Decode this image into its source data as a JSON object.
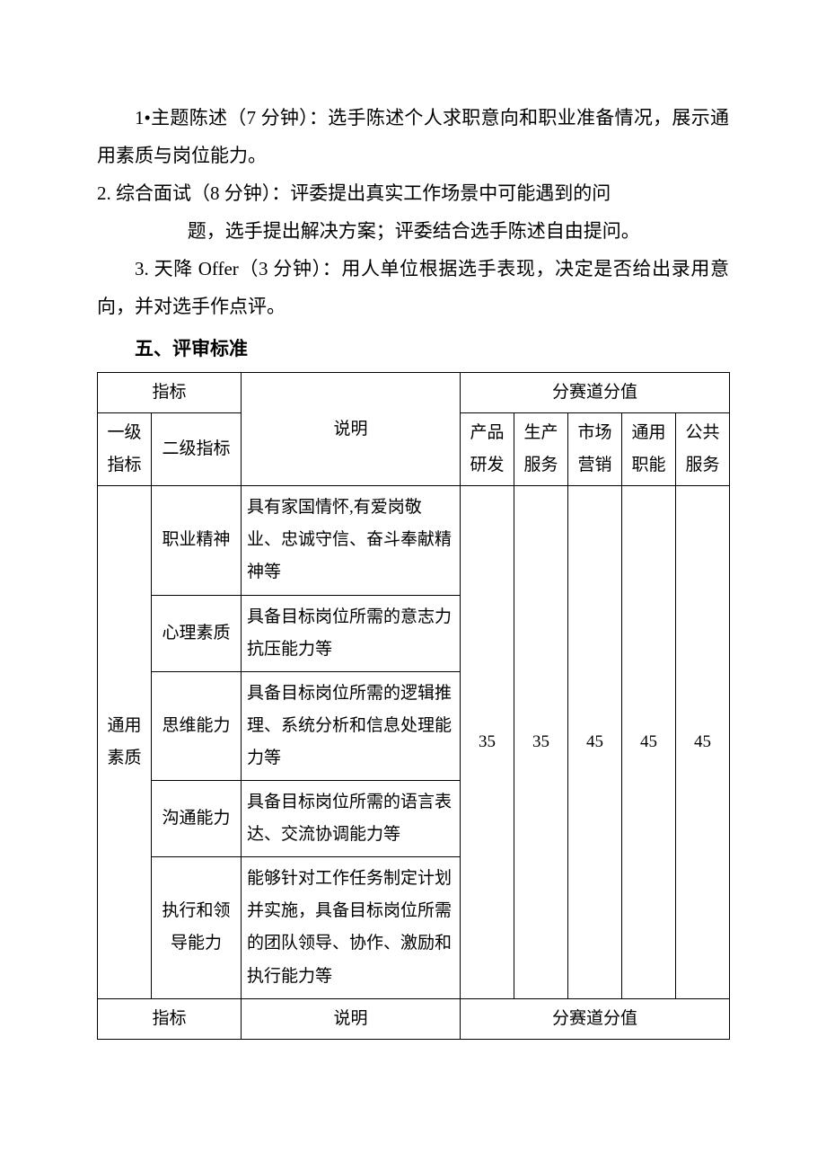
{
  "paragraphs": {
    "p1a": "1•主题陈述（7 分钟）：选手陈述个人求职意向和职业准备情况，展示通用素质与岗位能力。",
    "p2a": "2. 综合面试（8 分钟）：评委提出真实工作场景中可能遇到的问",
    "p2b": "题，选手提出解决方案；评委结合选手陈述自由提问。",
    "p3a": "3. 天降 Offer（3 分钟）：用人单位根据选手表现，决定是否给出录用意向，并对选手作点评。"
  },
  "section_heading": "五、评审标准",
  "table": {
    "header": {
      "indicator": "指标",
      "level1": "一级指标",
      "level2": "二级指标",
      "description": "说明",
      "score_group": "分赛道分值",
      "tracks": {
        "t1": "产品研发",
        "t2": "生产服务",
        "t3": "市场营销",
        "t4": "通用职能",
        "t5": "公共服务"
      }
    },
    "group1": {
      "level1": "通用素质",
      "rows": {
        "r1": {
          "l2": "职业精神",
          "desc": "具有家国情怀,有爱岗敬业、忠诚守信、奋斗奉献精神等"
        },
        "r2": {
          "l2": "心理素质",
          "desc": "具备目标岗位所需的意志力抗压能力等"
        },
        "r3": {
          "l2": "思维能力",
          "desc": "具备目标岗位所需的逻辑推理、系统分析和信息处理能力等"
        },
        "r4": {
          "l2": "沟通能力",
          "desc": "具备目标岗位所需的语言表达、交流协调能力等"
        },
        "r5": {
          "l2": "执行和领导能力",
          "desc": "能够针对工作任务制定计划并实施，具备目标岗位所需的团队领导、协作、激励和执行能力等"
        }
      },
      "scores": {
        "s1": "35",
        "s2": "35",
        "s3": "45",
        "s4": "45",
        "s5": "45"
      }
    },
    "footer": {
      "indicator": "指标",
      "description": "说明",
      "score_group": "分赛道分值"
    }
  }
}
